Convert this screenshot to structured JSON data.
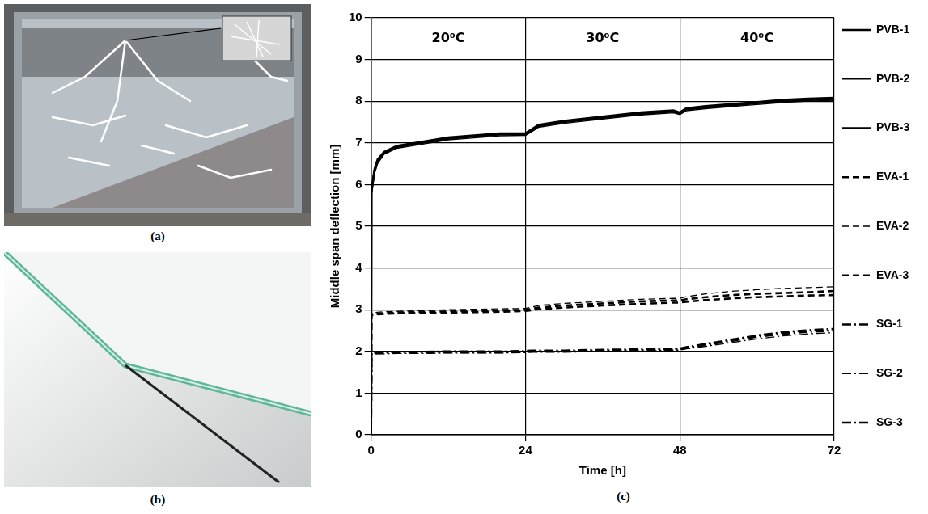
{
  "figure_labels": [
    "(a)",
    "(b)",
    "(c)"
  ],
  "chart_data": {
    "type": "line",
    "x_label": "Time [h]",
    "y_label": "Middle span deflection [mm]",
    "x": [
      0,
      0.05,
      0.5,
      1,
      2,
      4,
      8,
      12,
      16,
      20,
      24,
      25,
      26,
      30,
      36,
      42,
      47,
      48,
      49,
      52,
      56,
      60,
      64,
      68,
      72
    ],
    "xlim": [
      0,
      72
    ],
    "xticks": [
      0,
      24,
      48,
      72
    ],
    "ylim": [
      0,
      10
    ],
    "yticks": [
      0,
      1,
      2,
      3,
      4,
      5,
      6,
      7,
      8,
      9,
      10
    ],
    "grid": true,
    "legend": "right",
    "annotations": [
      {
        "text": "20⁰C",
        "x": 12,
        "y": 9.5
      },
      {
        "text": "30⁰C",
        "x": 36,
        "y": 9.5
      },
      {
        "text": "40⁰C",
        "x": 60,
        "y": 9.5
      }
    ],
    "series": [
      {
        "name": "PVB-1",
        "color": "#000000",
        "line_style": "solid",
        "values": [
          0,
          5.8,
          6.3,
          6.55,
          6.75,
          6.9,
          7.0,
          7.1,
          7.15,
          7.2,
          7.2,
          7.3,
          7.4,
          7.5,
          7.6,
          7.7,
          7.75,
          7.7,
          7.8,
          7.85,
          7.9,
          7.95,
          8.0,
          8.03,
          8.05
        ]
      },
      {
        "name": "PVB-2",
        "color": "#000000",
        "line_style": "solid",
        "values": [
          0,
          5.75,
          6.25,
          6.5,
          6.72,
          6.87,
          6.97,
          7.07,
          7.12,
          7.17,
          7.18,
          7.27,
          7.37,
          7.47,
          7.57,
          7.67,
          7.72,
          7.68,
          7.77,
          7.82,
          7.87,
          7.92,
          7.97,
          8.0,
          8.02
        ]
      },
      {
        "name": "PVB-3",
        "color": "#000000",
        "line_style": "solid",
        "values": [
          0,
          5.85,
          6.35,
          6.6,
          6.78,
          6.93,
          7.03,
          7.13,
          7.18,
          7.23,
          7.23,
          7.33,
          7.43,
          7.53,
          7.63,
          7.73,
          7.78,
          7.73,
          7.83,
          7.88,
          7.93,
          7.98,
          8.03,
          8.06,
          8.08
        ]
      },
      {
        "name": "EVA-1",
        "color": "#000000",
        "line_style": "dashed",
        "values": [
          0,
          2.9,
          2.9,
          2.9,
          2.92,
          2.93,
          2.95,
          2.96,
          2.97,
          2.98,
          3.0,
          3.02,
          3.05,
          3.1,
          3.15,
          3.2,
          3.22,
          3.22,
          3.25,
          3.3,
          3.35,
          3.38,
          3.4,
          3.42,
          3.45
        ]
      },
      {
        "name": "EVA-2",
        "color": "#000000",
        "line_style": "dashed",
        "values": [
          0,
          2.92,
          2.93,
          2.94,
          2.95,
          2.96,
          2.98,
          3.0,
          3.01,
          3.02,
          3.03,
          3.06,
          3.1,
          3.15,
          3.2,
          3.25,
          3.27,
          3.27,
          3.31,
          3.38,
          3.44,
          3.48,
          3.51,
          3.53,
          3.55
        ]
      },
      {
        "name": "EVA-3",
        "color": "#000000",
        "line_style": "dashed",
        "values": [
          0,
          2.88,
          2.88,
          2.89,
          2.9,
          2.91,
          2.92,
          2.93,
          2.94,
          2.95,
          2.97,
          2.99,
          3.01,
          3.05,
          3.1,
          3.14,
          3.17,
          3.17,
          3.19,
          3.23,
          3.27,
          3.3,
          3.32,
          3.34,
          3.35
        ]
      },
      {
        "name": "SG-1",
        "color": "#000000",
        "line_style": "dashdot",
        "values": [
          0,
          1.95,
          1.95,
          1.96,
          1.96,
          1.97,
          1.97,
          1.98,
          1.98,
          1.98,
          1.99,
          2.0,
          2.0,
          2.0,
          2.02,
          2.03,
          2.05,
          2.05,
          2.08,
          2.15,
          2.25,
          2.35,
          2.42,
          2.47,
          2.5
        ]
      },
      {
        "name": "SG-2",
        "color": "#000000",
        "line_style": "dashdot",
        "values": [
          0,
          1.93,
          1.93,
          1.94,
          1.94,
          1.95,
          1.95,
          1.96,
          1.96,
          1.96,
          1.97,
          1.98,
          1.98,
          1.98,
          2.0,
          2.01,
          2.03,
          2.03,
          2.06,
          2.12,
          2.21,
          2.3,
          2.37,
          2.42,
          2.45
        ]
      },
      {
        "name": "SG-3",
        "color": "#000000",
        "line_style": "dashdot",
        "values": [
          0,
          1.97,
          1.97,
          1.98,
          1.98,
          1.99,
          1.99,
          2.0,
          2.0,
          2.0,
          2.01,
          2.02,
          2.02,
          2.02,
          2.04,
          2.05,
          2.07,
          2.07,
          2.1,
          2.18,
          2.28,
          2.38,
          2.46,
          2.51,
          2.54
        ]
      }
    ]
  }
}
